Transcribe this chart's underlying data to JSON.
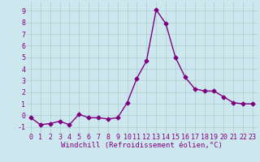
{
  "x": [
    0,
    1,
    2,
    3,
    4,
    5,
    6,
    7,
    8,
    9,
    10,
    11,
    12,
    13,
    14,
    15,
    16,
    17,
    18,
    19,
    20,
    21,
    22,
    23
  ],
  "y": [
    -0.2,
    -0.8,
    -0.7,
    -0.5,
    -0.8,
    0.1,
    -0.2,
    -0.2,
    -0.3,
    -0.2,
    1.1,
    3.2,
    4.7,
    9.1,
    7.9,
    5.0,
    3.3,
    2.3,
    2.1,
    2.1,
    1.6,
    1.1,
    1.0,
    1.0
  ],
  "line_color": "#800080",
  "marker": "D",
  "marker_size": 2.5,
  "line_width": 1.0,
  "bg_color": "#cce8ee",
  "grid_color": "#aacccc",
  "xlabel": "Windchill (Refroidissement éolien,°C)",
  "xlabel_fontsize": 6.5,
  "tick_fontsize": 6.0,
  "xlim": [
    -0.5,
    23.5
  ],
  "ylim": [
    -1.5,
    9.8
  ],
  "yticks": [
    -1,
    0,
    1,
    2,
    3,
    4,
    5,
    6,
    7,
    8,
    9
  ],
  "xticks": [
    0,
    1,
    2,
    3,
    4,
    5,
    6,
    7,
    8,
    9,
    10,
    11,
    12,
    13,
    14,
    15,
    16,
    17,
    18,
    19,
    20,
    21,
    22,
    23
  ]
}
